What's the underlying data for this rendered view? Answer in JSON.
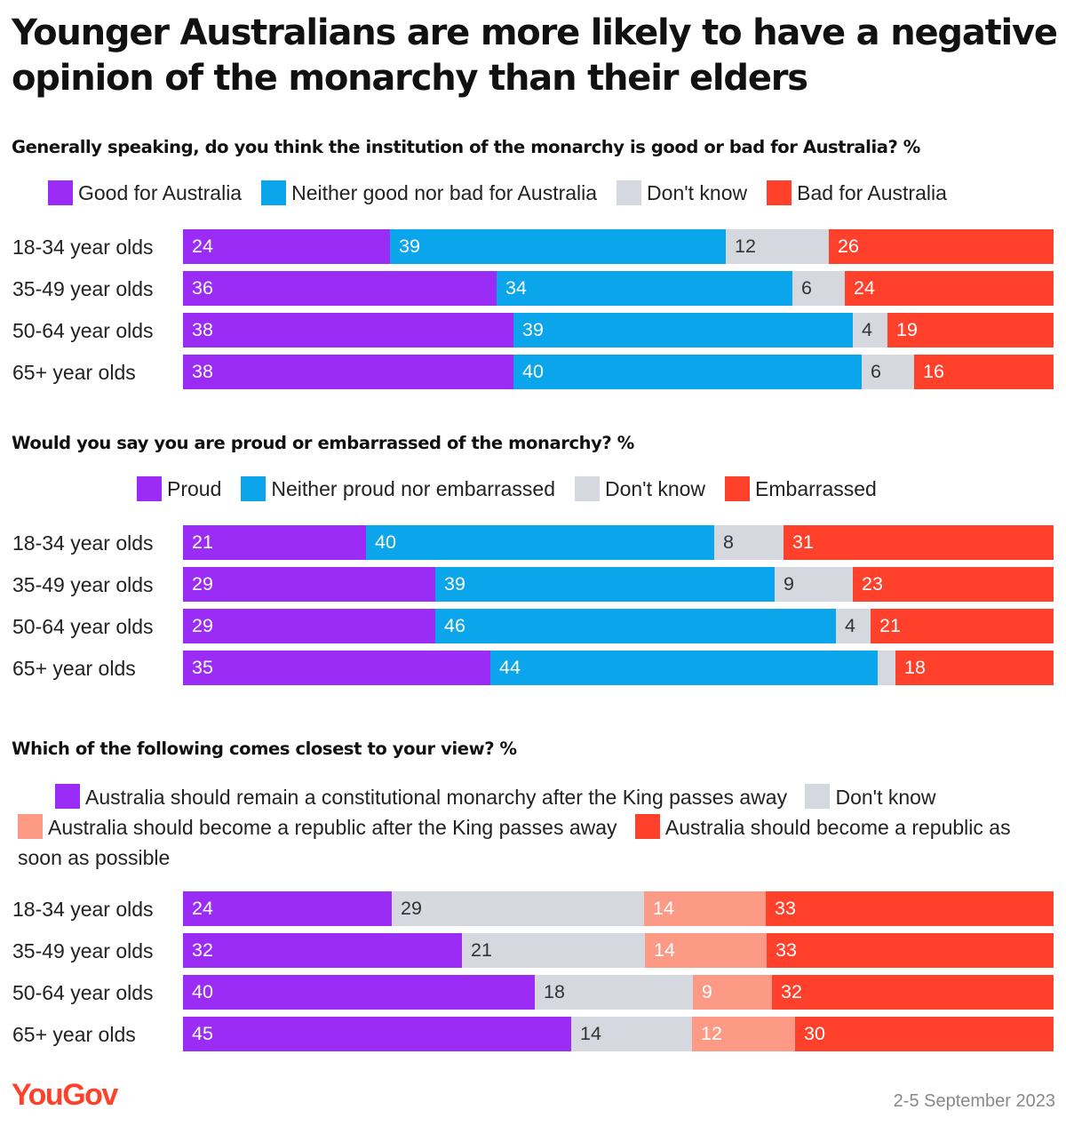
{
  "title": "Younger Australians are more likely to have a negative opinion of the monarchy than their elders",
  "colors": {
    "purple": "#9b2cf6",
    "blue": "#0aa5ea",
    "grey": "#d5d8de",
    "red": "#ff412c",
    "salmon": "#fd9a86"
  },
  "charts": [
    {
      "question": "Generally speaking, do you think the institution of the monarchy is good or bad for Australia? %",
      "legend": [
        "Good for Australia",
        "Neither good nor bad for Australia",
        "Don't know",
        "Bad for Australia"
      ]
    },
    {
      "question": "Would you say you are proud or embarrassed of the monarchy? %",
      "legend": [
        "Proud",
        "Neither proud nor embarrassed",
        "Don't know",
        "Embarrassed"
      ]
    },
    {
      "question": "Which of the following comes closest to your view? %",
      "legend": [
        "Australia should remain a constitutional monarchy after the King passes away",
        "Don't know",
        "Australia should become a republic after the King passes away",
        "Australia should become a republic as soon as possible"
      ]
    }
  ],
  "chart_data": [
    {
      "type": "bar",
      "stacked": true,
      "orientation": "horizontal",
      "title": "Generally speaking, do you think the institution of the monarchy is good or bad for Australia? %",
      "categories": [
        "18-34 year olds",
        "35-49 year olds",
        "50-64 year olds",
        "65+ year olds"
      ],
      "series": [
        {
          "name": "Good for Australia",
          "color": "#9b2cf6",
          "values": [
            24,
            36,
            38,
            38
          ]
        },
        {
          "name": "Neither good nor bad for Australia",
          "color": "#0aa5ea",
          "values": [
            39,
            34,
            39,
            40
          ]
        },
        {
          "name": "Don't know",
          "color": "#d5d8de",
          "values": [
            12,
            6,
            4,
            6
          ]
        },
        {
          "name": "Bad for Australia",
          "color": "#ff412c",
          "values": [
            26,
            24,
            19,
            16
          ]
        }
      ],
      "labels": [
        [
          "24",
          "39",
          "12",
          "26"
        ],
        [
          "36",
          "34",
          "6",
          "24"
        ],
        [
          "38",
          "39",
          "4",
          "19"
        ],
        [
          "38",
          "40",
          "6",
          "16"
        ]
      ]
    },
    {
      "type": "bar",
      "stacked": true,
      "orientation": "horizontal",
      "title": "Would you say you are proud or embarrassed of the monarchy? %",
      "categories": [
        "18-34 year olds",
        "35-49 year olds",
        "50-64 year olds",
        "65+ year olds"
      ],
      "series": [
        {
          "name": "Proud",
          "color": "#9b2cf6",
          "values": [
            21,
            29,
            29,
            35
          ]
        },
        {
          "name": "Neither proud nor embarrassed",
          "color": "#0aa5ea",
          "values": [
            40,
            39,
            46,
            44
          ]
        },
        {
          "name": "Don't know",
          "color": "#d5d8de",
          "values": [
            8,
            9,
            4,
            2
          ]
        },
        {
          "name": "Embarrassed",
          "color": "#ff412c",
          "values": [
            31,
            23,
            21,
            18
          ]
        }
      ],
      "labels": [
        [
          "21",
          "40",
          "8",
          "31"
        ],
        [
          "29",
          "39",
          "9",
          "23"
        ],
        [
          "29",
          "46",
          "4",
          "21"
        ],
        [
          "35",
          "44",
          "",
          "18"
        ]
      ]
    },
    {
      "type": "bar",
      "stacked": true,
      "orientation": "horizontal",
      "title": "Which of the following comes closest to your view? %",
      "categories": [
        "18-34 year olds",
        "35-49 year olds",
        "50-64 year olds",
        "65+ year olds"
      ],
      "series": [
        {
          "name": "Australia should remain a constitutional monarchy after the King passes away",
          "color": "#9b2cf6",
          "values": [
            24,
            32,
            40,
            45
          ]
        },
        {
          "name": "Don't know",
          "color": "#d5d8de",
          "values": [
            29,
            21,
            18,
            14
          ]
        },
        {
          "name": "Australia should become a republic after the King passes away",
          "color": "#fd9a86",
          "values": [
            14,
            14,
            9,
            12
          ]
        },
        {
          "name": "Australia should become a republic as soon as possible",
          "color": "#ff412c",
          "values": [
            33,
            33,
            32,
            30
          ]
        }
      ],
      "labels": [
        [
          "24",
          "29",
          "14",
          "33"
        ],
        [
          "32",
          "21",
          "14",
          "33"
        ],
        [
          "40",
          "18",
          "9",
          "32"
        ],
        [
          "45",
          "14",
          "12",
          "30"
        ]
      ]
    }
  ],
  "footer": {
    "brand": "YouGov",
    "date": "2-5 September 2023"
  }
}
